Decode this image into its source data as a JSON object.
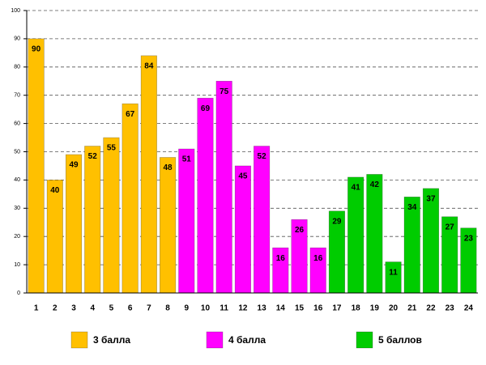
{
  "chart_data": {
    "type": "bar",
    "categories": [
      "1",
      "2",
      "3",
      "4",
      "5",
      "6",
      "7",
      "8",
      "9",
      "10",
      "11",
      "12",
      "13",
      "14",
      "15",
      "16",
      "17",
      "18",
      "19",
      "20",
      "21",
      "22",
      "23",
      "24"
    ],
    "series": [
      {
        "name": "3 балла",
        "color": "#ffc000",
        "values": [
          90,
          40,
          49,
          52,
          55,
          67,
          84,
          48,
          null,
          null,
          null,
          null,
          null,
          null,
          null,
          null,
          null,
          null,
          null,
          null,
          null,
          null,
          null,
          null
        ]
      },
      {
        "name": "4 балла",
        "color": "#ff00ff",
        "values": [
          null,
          null,
          null,
          null,
          null,
          null,
          null,
          null,
          51,
          69,
          75,
          45,
          52,
          16,
          26,
          16,
          null,
          null,
          null,
          null,
          null,
          null,
          null,
          null
        ]
      },
      {
        "name": "5 баллов",
        "color": "#00cc00",
        "values": [
          null,
          null,
          null,
          null,
          null,
          null,
          null,
          null,
          null,
          null,
          null,
          null,
          null,
          null,
          null,
          null,
          29,
          41,
          42,
          11,
          34,
          37,
          27,
          23
        ]
      }
    ],
    "ylim": [
      0,
      100
    ],
    "yticks": [
      0,
      10,
      20,
      30,
      40,
      50,
      60,
      70,
      80,
      90,
      100
    ],
    "grid": true,
    "legend": "bottom"
  }
}
